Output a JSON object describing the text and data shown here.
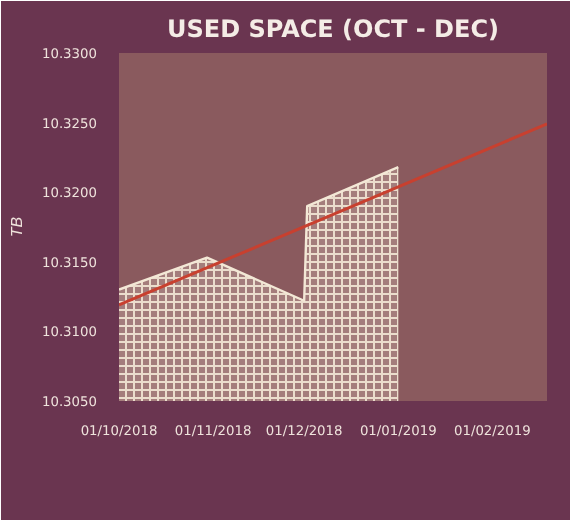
{
  "chart_data": {
    "type": "area",
    "title": "USED SPACE (OCT - DEC)",
    "ylabel": "TB",
    "xlim": [
      "2018-10-01",
      "2019-02-19"
    ],
    "ylim": [
      10.305,
      10.33
    ],
    "xticks": [
      {
        "value": "2018-10-01",
        "label": "01/10/2018"
      },
      {
        "value": "2018-11-01",
        "label": "01/11/2018"
      },
      {
        "value": "2018-12-01",
        "label": "01/12/2018"
      },
      {
        "value": "2019-01-01",
        "label": "01/01/2019"
      },
      {
        "value": "2019-02-01",
        "label": "01/02/2019"
      }
    ],
    "yticks": [
      {
        "value": 10.305,
        "label": "10.3050"
      },
      {
        "value": 10.31,
        "label": "10.3100"
      },
      {
        "value": 10.315,
        "label": "10.3150"
      },
      {
        "value": 10.32,
        "label": "10.3200"
      },
      {
        "value": 10.325,
        "label": "10.3250"
      },
      {
        "value": 10.33,
        "label": "10.3300"
      }
    ],
    "grid": false,
    "series": [
      {
        "color": "#f3e8d6",
        "x": [
          "2018-10-01",
          "2018-10-30",
          "2018-12-01",
          "2018-12-02",
          "2019-01-01"
        ],
        "values": [
          10.313,
          10.3153,
          10.3122,
          10.319,
          10.3218
        ]
      },
      {
        "type": "line",
        "color": "#c8402f",
        "x": [
          "2018-10-01",
          "2019-02-19"
        ],
        "values": [
          10.3119,
          10.3249
        ]
      }
    ]
  }
}
